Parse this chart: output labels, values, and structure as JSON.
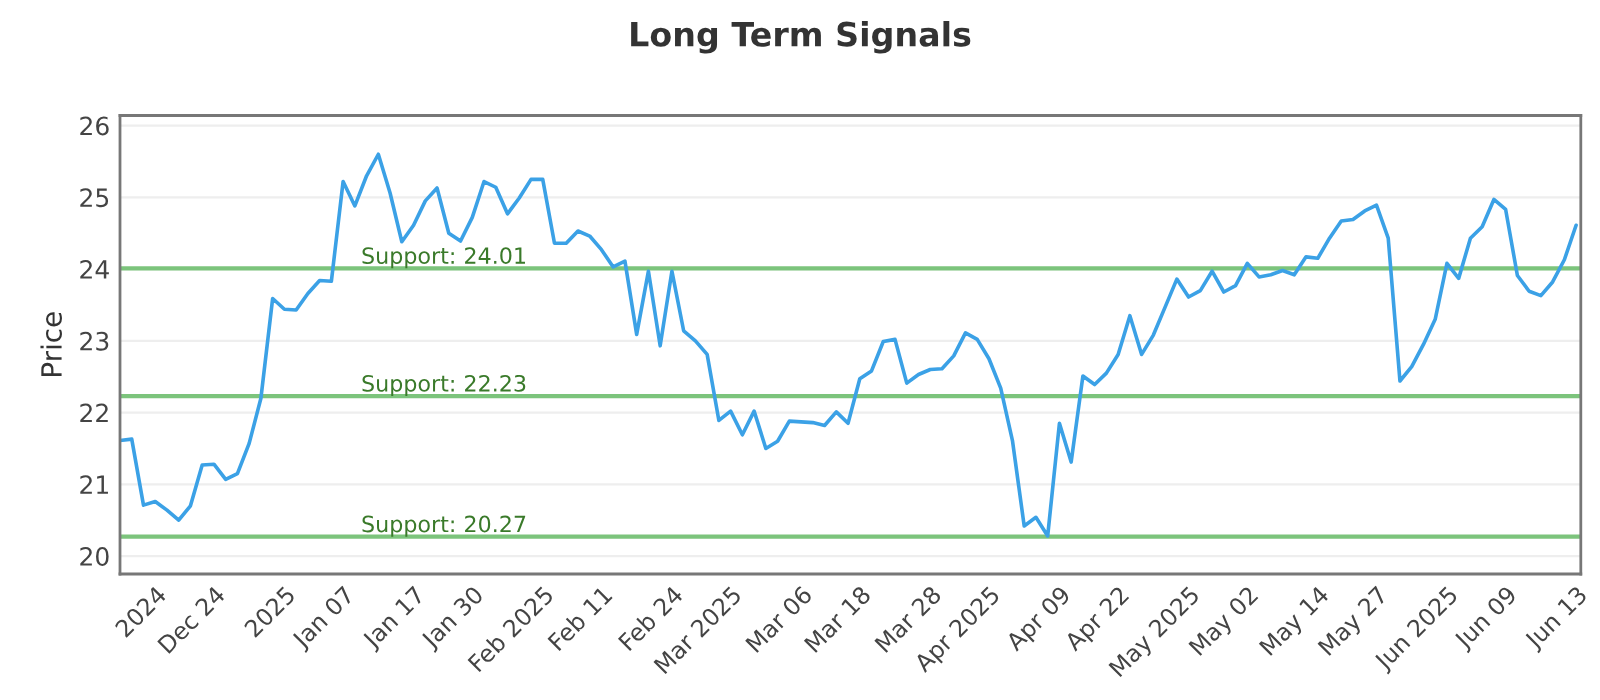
{
  "chart_data": {
    "type": "line",
    "title": "Long Term Signals",
    "ylabel": "Price",
    "categories": [
      null,
      null,
      null,
      "2024",
      null,
      null,
      null,
      null,
      "Dec 24",
      null,
      null,
      null,
      null,
      null,
      "2025",
      null,
      null,
      null,
      null,
      "Jan 07",
      null,
      null,
      null,
      null,
      null,
      "Jan 17",
      null,
      null,
      null,
      null,
      "Jan 30",
      null,
      null,
      null,
      null,
      null,
      "Feb 2025",
      null,
      null,
      null,
      null,
      "Feb 11",
      null,
      null,
      null,
      null,
      null,
      "Feb 24",
      null,
      null,
      null,
      null,
      "Mar 2025",
      null,
      null,
      null,
      null,
      null,
      "Mar 06",
      null,
      null,
      null,
      null,
      "Mar 18",
      null,
      null,
      null,
      null,
      null,
      "Mar 28",
      null,
      null,
      null,
      null,
      "Apr 2025",
      null,
      null,
      null,
      null,
      null,
      "Apr 09",
      null,
      null,
      null,
      null,
      "Apr 22",
      null,
      null,
      null,
      null,
      null,
      "May 2025",
      null,
      null,
      null,
      null,
      "May 02",
      null,
      null,
      null,
      null,
      null,
      "May 14",
      null,
      null,
      null,
      null,
      "May 27",
      null,
      null,
      null,
      null,
      null,
      "Jun 2025",
      null,
      null,
      null,
      null,
      "Jun 09",
      null,
      null,
      null,
      null,
      null,
      "Jun 13"
    ],
    "series": [
      {
        "color": "#3ba1e6",
        "values": [
          21.61,
          21.63,
          20.71,
          20.76,
          20.64,
          20.5,
          20.7,
          21.27,
          21.28,
          21.07,
          21.15,
          21.57,
          22.2,
          23.59,
          23.44,
          23.43,
          23.66,
          23.84,
          23.83,
          25.22,
          24.88,
          25.3,
          25.6,
          25.06,
          24.38,
          24.61,
          24.95,
          25.13,
          24.5,
          24.39,
          24.72,
          25.22,
          25.14,
          24.77,
          24.99,
          25.25,
          25.25,
          24.36,
          24.36,
          24.53,
          24.46,
          24.27,
          24.03,
          24.11,
          23.09,
          23.97,
          22.93,
          23.97,
          23.14,
          23.0,
          22.81,
          21.89,
          22.02,
          21.69,
          22.02,
          21.5,
          21.6,
          21.88,
          21.87,
          21.86,
          21.82,
          22.01,
          21.85,
          22.47,
          22.58,
          22.99,
          23.02,
          22.41,
          22.53,
          22.6,
          22.61,
          22.79,
          23.11,
          23.02,
          22.75,
          22.34,
          21.61,
          20.42,
          20.54,
          20.28,
          21.85,
          21.31,
          22.51,
          22.39,
          22.55,
          22.81,
          23.35,
          22.81,
          23.08,
          23.47,
          23.86,
          23.61,
          23.7,
          23.97,
          23.68,
          23.77,
          24.08,
          23.89,
          23.92,
          23.98,
          23.92,
          24.17,
          24.15,
          24.43,
          24.67,
          24.69,
          24.81,
          24.89,
          24.43,
          22.44,
          22.64,
          22.95,
          23.3,
          24.08,
          23.87,
          24.43,
          24.59,
          24.97,
          24.83,
          23.91,
          23.69,
          23.63,
          23.82,
          24.13,
          24.61
        ]
      }
    ],
    "ylim": [
      19.75,
      26.14
    ],
    "yticks": [
      20,
      21,
      22,
      23,
      24,
      25,
      26
    ],
    "ref_lines": [
      {
        "axis": "y",
        "value": 24.01,
        "label": "Support: 24.01",
        "color": "#7cc47c"
      },
      {
        "axis": "y",
        "value": 22.23,
        "label": "Support: 22.23",
        "color": "#7cc47c"
      },
      {
        "axis": "y",
        "value": 20.27,
        "label": "Support: 20.27",
        "color": "#7cc47c"
      }
    ],
    "grid": "y",
    "legend": false,
    "marker": "none",
    "line_style": "solid"
  }
}
